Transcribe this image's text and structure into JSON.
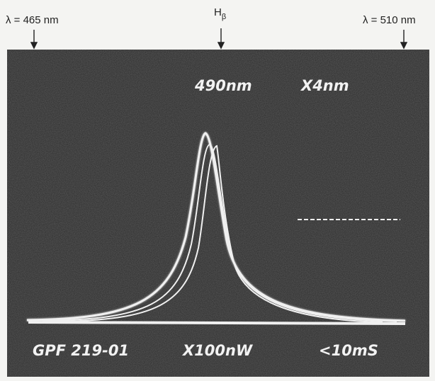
{
  "header": {
    "left_marker": "λ = 465 nm",
    "center_marker": "H",
    "center_marker_subscript": "β",
    "right_marker": "λ = 510 nm"
  },
  "screen": {
    "center_wavelength": "490nm",
    "span": "X4nm",
    "id": "GPF 219-01",
    "scale": "X100nW",
    "time": "<10mS"
  }
}
